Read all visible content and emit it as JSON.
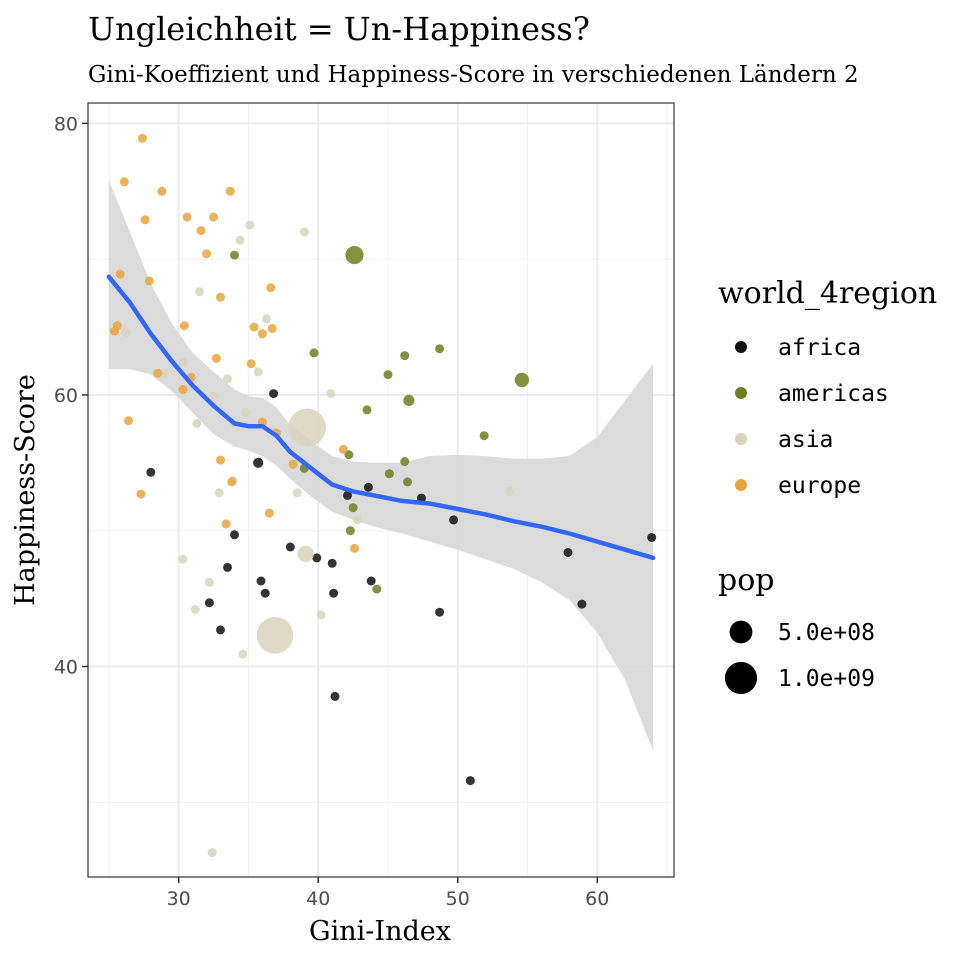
{
  "chart_data": {
    "type": "scatter",
    "title": "Ungleichheit = Un-Happiness?",
    "subtitle": "Gini-Koeffizient und Happiness-Score in verschiedenen Ländern 2",
    "xlabel": "Gini-Index",
    "ylabel": "Happiness-Score",
    "xlim": [
      23.5,
      65.5
    ],
    "ylim": [
      24.5,
      81.5
    ],
    "x_ticks": [
      30,
      40,
      50,
      60
    ],
    "y_ticks": [
      40,
      60,
      80
    ],
    "grid": true,
    "legend": {
      "placement": "right",
      "color_title": "world_4region",
      "size_title": "pop",
      "color_entries": [
        {
          "label": "africa",
          "color": "#111111"
        },
        {
          "label": "americas",
          "color": "#6b7f1f"
        },
        {
          "label": "asia",
          "color": "#d9d2bd"
        },
        {
          "label": "europe",
          "color": "#e8a43c"
        }
      ],
      "size_entries": [
        {
          "label": "5.0e+08",
          "pop": 500000000
        },
        {
          "label": "1.0e+09",
          "pop": 1000000000
        }
      ]
    },
    "series": [
      {
        "name": "africa",
        "color": "#111111",
        "points": [
          {
            "x": 28.0,
            "y": 54.3,
            "pop": 20000000
          },
          {
            "x": 32.2,
            "y": 44.7,
            "pop": 50000000
          },
          {
            "x": 33.0,
            "y": 42.7,
            "pop": 10000000
          },
          {
            "x": 33.5,
            "y": 47.3,
            "pop": 10000000
          },
          {
            "x": 34.0,
            "y": 49.7,
            "pop": 10000000
          },
          {
            "x": 35.7,
            "y": 55.0,
            "pop": 100000000
          },
          {
            "x": 35.9,
            "y": 46.3,
            "pop": 15000000
          },
          {
            "x": 36.2,
            "y": 45.4,
            "pop": 60000000
          },
          {
            "x": 36.8,
            "y": 60.1,
            "pop": 3000000
          },
          {
            "x": 38.0,
            "y": 48.8,
            "pop": 5000000
          },
          {
            "x": 39.9,
            "y": 48.0,
            "pop": 15000000
          },
          {
            "x": 41.0,
            "y": 47.6,
            "pop": 15000000
          },
          {
            "x": 41.1,
            "y": 45.4,
            "pop": 30000000
          },
          {
            "x": 41.2,
            "y": 37.8,
            "pop": 30000000
          },
          {
            "x": 42.1,
            "y": 52.6,
            "pop": 15000000
          },
          {
            "x": 43.6,
            "y": 53.2,
            "pop": 15000000
          },
          {
            "x": 43.8,
            "y": 46.3,
            "pop": 30000000
          },
          {
            "x": 47.4,
            "y": 52.4,
            "pop": 15000000
          },
          {
            "x": 48.7,
            "y": 44.0,
            "pop": 10000000
          },
          {
            "x": 49.7,
            "y": 50.8,
            "pop": 5000000
          },
          {
            "x": 50.9,
            "y": 31.6,
            "pop": 10000000
          },
          {
            "x": 57.9,
            "y": 48.4,
            "pop": 15000000
          },
          {
            "x": 58.9,
            "y": 44.6,
            "pop": 3000000
          },
          {
            "x": 63.9,
            "y": 49.5,
            "pop": 40000000
          }
        ]
      },
      {
        "name": "americas",
        "color": "#6b7f1f",
        "points": [
          {
            "x": 34.0,
            "y": 70.3,
            "pop": 30000000
          },
          {
            "x": 39.0,
            "y": 54.6,
            "pop": 5000000
          },
          {
            "x": 39.7,
            "y": 63.1,
            "pop": 5000000
          },
          {
            "x": 42.2,
            "y": 55.6,
            "pop": 10000000
          },
          {
            "x": 42.3,
            "y": 50.0,
            "pop": 15000000
          },
          {
            "x": 42.5,
            "y": 51.7,
            "pop": 5000000
          },
          {
            "x": 42.6,
            "y": 70.3,
            "pop": 320000000
          },
          {
            "x": 43.5,
            "y": 58.9,
            "pop": 40000000
          },
          {
            "x": 44.2,
            "y": 45.7,
            "pop": 10000000
          },
          {
            "x": 45.0,
            "y": 61.5,
            "pop": 10000000
          },
          {
            "x": 45.1,
            "y": 54.2,
            "pop": 5000000
          },
          {
            "x": 46.2,
            "y": 55.1,
            "pop": 5000000
          },
          {
            "x": 46.2,
            "y": 62.9,
            "pop": 5000000
          },
          {
            "x": 46.4,
            "y": 53.6,
            "pop": 5000000
          },
          {
            "x": 46.5,
            "y": 59.6,
            "pop": 120000000
          },
          {
            "x": 48.7,
            "y": 63.4,
            "pop": 5000000
          },
          {
            "x": 51.9,
            "y": 57.0,
            "pop": 30000000
          },
          {
            "x": 54.6,
            "y": 61.1,
            "pop": 200000000
          }
        ]
      },
      {
        "name": "asia",
        "color": "#d9d2bd",
        "points": [
          {
            "x": 26.2,
            "y": 64.6,
            "pop": 5000000
          },
          {
            "x": 29.0,
            "y": 61.6,
            "pop": 15000000
          },
          {
            "x": 30.3,
            "y": 47.9,
            "pop": 30000000
          },
          {
            "x": 30.3,
            "y": 62.4,
            "pop": 10000000
          },
          {
            "x": 30.8,
            "y": 60.6,
            "pop": 10000000
          },
          {
            "x": 31.2,
            "y": 44.2,
            "pop": 40000000
          },
          {
            "x": 31.3,
            "y": 57.9,
            "pop": 60000000
          },
          {
            "x": 31.5,
            "y": 67.6,
            "pop": 30000000
          },
          {
            "x": 32.2,
            "y": 46.2,
            "pop": 80000000
          },
          {
            "x": 32.4,
            "y": 26.3,
            "pop": 5000000
          },
          {
            "x": 32.5,
            "y": 59.9,
            "pop": 10000000
          },
          {
            "x": 32.9,
            "y": 52.8,
            "pop": 60000000
          },
          {
            "x": 33.5,
            "y": 61.2,
            "pop": 80000000
          },
          {
            "x": 33.9,
            "y": 53.7,
            "pop": 5000000
          },
          {
            "x": 34.1,
            "y": 57.8,
            "pop": 30000000
          },
          {
            "x": 34.4,
            "y": 71.4,
            "pop": 15000000
          },
          {
            "x": 34.6,
            "y": 40.9,
            "pop": 10000000
          },
          {
            "x": 34.8,
            "y": 58.7,
            "pop": 40000000
          },
          {
            "x": 35.1,
            "y": 72.5,
            "pop": 10000000
          },
          {
            "x": 35.7,
            "y": 61.7,
            "pop": 10000000
          },
          {
            "x": 36.3,
            "y": 65.6,
            "pop": 30000000
          },
          {
            "x": 36.9,
            "y": 42.3,
            "pop": 1300000000
          },
          {
            "x": 38.5,
            "y": 52.8,
            "pop": 10000000
          },
          {
            "x": 39.1,
            "y": 48.3,
            "pop": 260000000
          },
          {
            "x": 39.0,
            "y": 72.0,
            "pop": 10000000
          },
          {
            "x": 39.2,
            "y": 57.6,
            "pop": 1380000000
          },
          {
            "x": 40.2,
            "y": 43.8,
            "pop": 30000000
          },
          {
            "x": 40.9,
            "y": 60.1,
            "pop": 40000000
          },
          {
            "x": 42.8,
            "y": 50.8,
            "pop": 60000000
          },
          {
            "x": 53.7,
            "y": 52.9,
            "pop": 10000000
          }
        ]
      },
      {
        "name": "europe",
        "color": "#e8a43c",
        "points": [
          {
            "x": 25.4,
            "y": 64.7,
            "pop": 10000000
          },
          {
            "x": 25.6,
            "y": 65.1,
            "pop": 10000000
          },
          {
            "x": 25.8,
            "y": 68.9,
            "pop": 10000000
          },
          {
            "x": 26.1,
            "y": 75.7,
            "pop": 5000000
          },
          {
            "x": 26.4,
            "y": 58.1,
            "pop": 10000000
          },
          {
            "x": 27.3,
            "y": 52.7,
            "pop": 40000000
          },
          {
            "x": 27.4,
            "y": 78.9,
            "pop": 15000000
          },
          {
            "x": 27.6,
            "y": 72.9,
            "pop": 15000000
          },
          {
            "x": 27.9,
            "y": 68.4,
            "pop": 15000000
          },
          {
            "x": 28.5,
            "y": 61.6,
            "pop": 10000000
          },
          {
            "x": 28.8,
            "y": 75.0,
            "pop": 30000000
          },
          {
            "x": 30.3,
            "y": 60.4,
            "pop": 30000000
          },
          {
            "x": 30.4,
            "y": 65.1,
            "pop": 10000000
          },
          {
            "x": 30.6,
            "y": 73.1,
            "pop": 15000000
          },
          {
            "x": 30.9,
            "y": 61.3,
            "pop": 40000000
          },
          {
            "x": 31.6,
            "y": 72.1,
            "pop": 15000000
          },
          {
            "x": 32.0,
            "y": 70.4,
            "pop": 15000000
          },
          {
            "x": 32.5,
            "y": 73.1,
            "pop": 60000000
          },
          {
            "x": 32.7,
            "y": 62.7,
            "pop": 10000000
          },
          {
            "x": 33.0,
            "y": 67.2,
            "pop": 40000000
          },
          {
            "x": 33.0,
            "y": 55.2,
            "pop": 10000000
          },
          {
            "x": 33.4,
            "y": 50.5,
            "pop": 5000000
          },
          {
            "x": 33.7,
            "y": 75.0,
            "pop": 15000000
          },
          {
            "x": 33.8,
            "y": 53.6,
            "pop": 10000000
          },
          {
            "x": 35.2,
            "y": 62.3,
            "pop": 10000000
          },
          {
            "x": 35.4,
            "y": 65.0,
            "pop": 40000000
          },
          {
            "x": 36.0,
            "y": 58.0,
            "pop": 10000000
          },
          {
            "x": 36.0,
            "y": 64.5,
            "pop": 10000000
          },
          {
            "x": 36.5,
            "y": 51.3,
            "pop": 10000000
          },
          {
            "x": 36.6,
            "y": 67.9,
            "pop": 60000000
          },
          {
            "x": 36.7,
            "y": 64.9,
            "pop": 60000000
          },
          {
            "x": 37.0,
            "y": 57.2,
            "pop": 5000000
          },
          {
            "x": 38.2,
            "y": 54.9,
            "pop": 60000000
          },
          {
            "x": 41.8,
            "y": 56.0,
            "pop": 10000000
          },
          {
            "x": 42.6,
            "y": 48.7,
            "pop": 60000000
          }
        ]
      }
    ],
    "smooth": {
      "color": "#3366ff",
      "band_color": "#d9d9d9",
      "x": [
        25.0,
        26.5,
        28.0,
        29.5,
        31.0,
        32.5,
        34.0,
        35.0,
        36.0,
        37.0,
        38.0,
        39.5,
        41.0,
        42.5,
        44.0,
        46.0,
        48.0,
        50.0,
        52.0,
        54.0,
        56.0,
        58.0,
        60.0,
        62.0,
        64.0
      ],
      "y": [
        68.7,
        66.8,
        64.5,
        62.5,
        60.7,
        59.2,
        57.9,
        57.7,
        57.7,
        57.0,
        55.8,
        54.6,
        53.4,
        52.9,
        52.6,
        52.2,
        52.0,
        51.6,
        51.2,
        50.7,
        50.3,
        49.8,
        49.2,
        48.6,
        48.0
      ],
      "lower": [
        61.9,
        61.9,
        61.5,
        60.3,
        58.7,
        57.1,
        56.2,
        55.9,
        55.5,
        54.8,
        53.8,
        52.5,
        51.4,
        50.8,
        50.3,
        49.8,
        49.2,
        48.6,
        47.9,
        47.2,
        46.2,
        44.9,
        42.5,
        39.0,
        33.8
      ],
      "upper": [
        75.8,
        72.0,
        68.2,
        65.3,
        63.1,
        61.7,
        60.4,
        59.9,
        59.8,
        59.1,
        57.8,
        56.6,
        55.5,
        55.1,
        55.0,
        55.0,
        55.5,
        55.6,
        55.5,
        55.3,
        55.3,
        55.5,
        56.9,
        59.6,
        62.3
      ]
    }
  }
}
